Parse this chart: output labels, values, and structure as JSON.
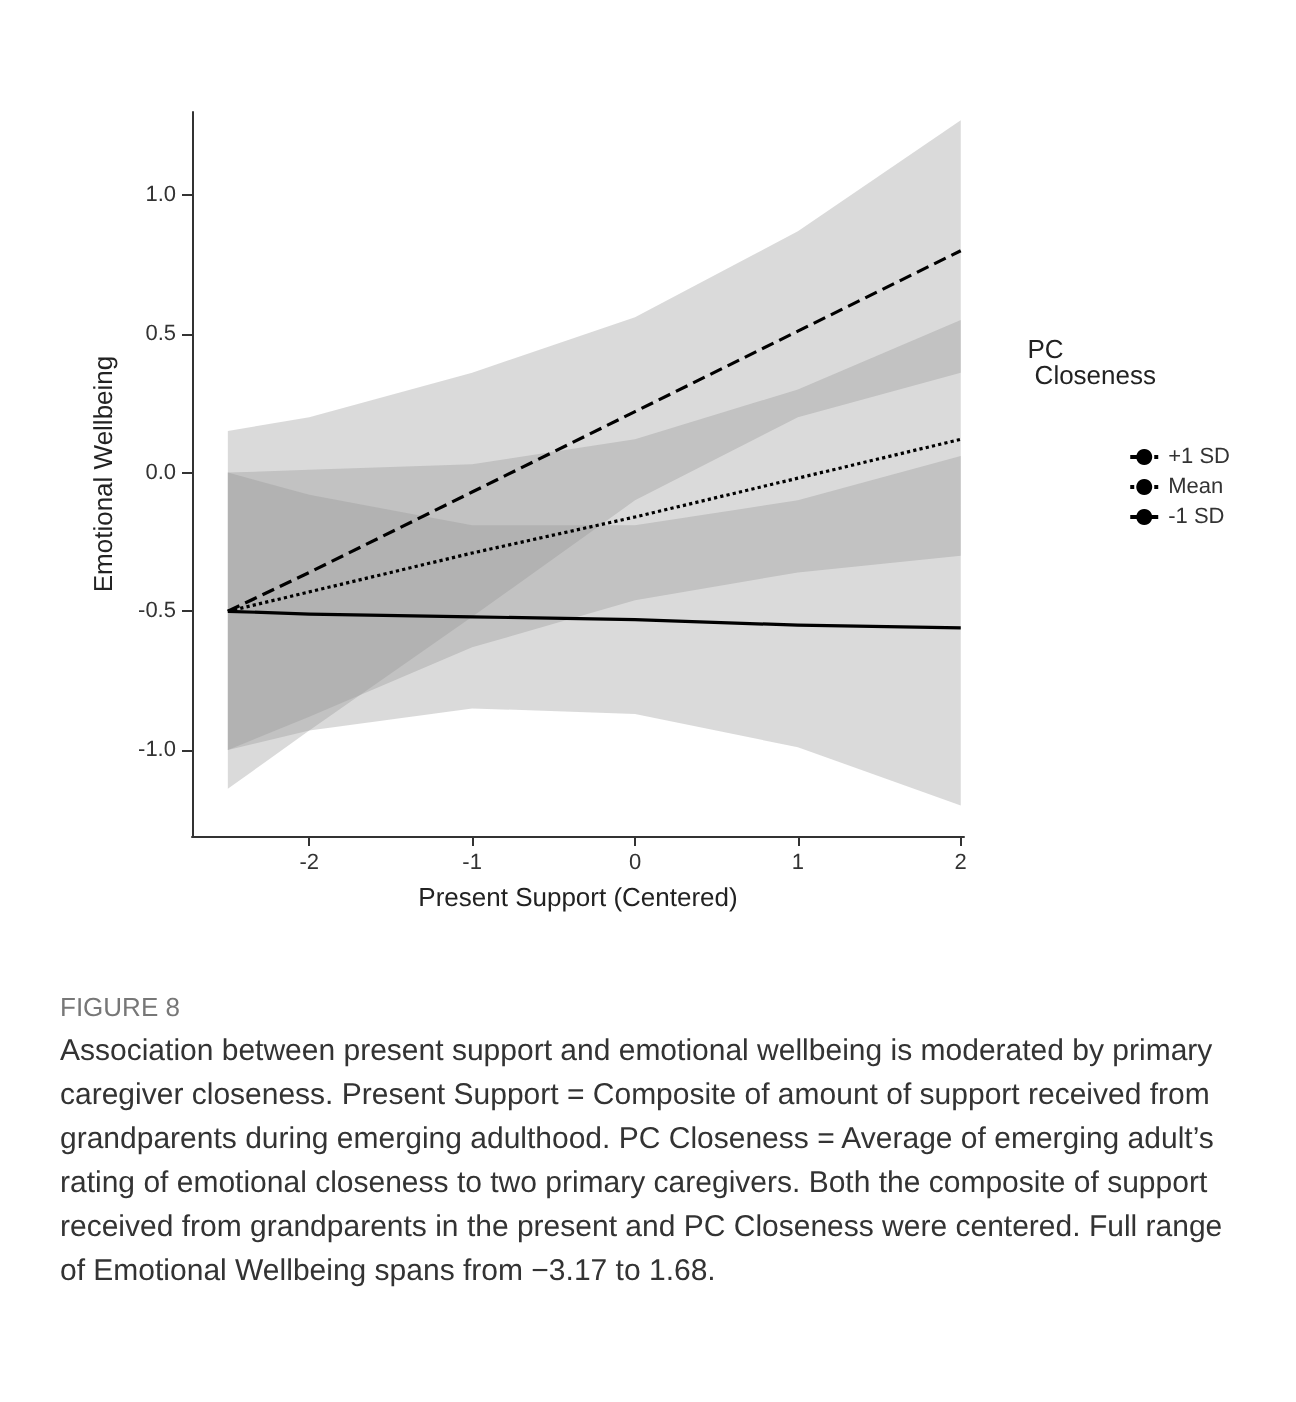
{
  "chart_data": {
    "type": "line",
    "xlabel": "Present Support (Centered)",
    "ylabel": "Emotional Wellbeing",
    "legend_title": "PC\n Closeness",
    "legend": "right",
    "grid": false,
    "marker": "none",
    "x": [
      -2.5,
      -2,
      -1,
      0,
      1,
      2
    ],
    "xlim": [
      -2.72,
      2.02
    ],
    "xticks": [
      -2,
      -1,
      0,
      1,
      2
    ],
    "ylim": [
      -1.31,
      1.3
    ],
    "yticks": [
      {
        "value": -1,
        "label": "-1.0"
      },
      {
        "value": -0.5,
        "label": "-0.5"
      },
      {
        "value": 0,
        "label": "0.0"
      },
      {
        "value": 0.5,
        "label": "0.5"
      },
      {
        "value": 1,
        "label": "1.0"
      }
    ],
    "series": [
      {
        "name": "+1 SD",
        "color": "#000000",
        "line_style": "dashed",
        "values": [
          -0.5,
          -0.36,
          -0.07,
          0.22,
          0.51,
          0.8
        ],
        "lower": [
          -1.14,
          -0.93,
          -0.52,
          -0.1,
          0.2,
          0.36
        ],
        "upper": [
          0.15,
          0.2,
          0.36,
          0.56,
          0.87,
          1.27
        ]
      },
      {
        "name": "Mean",
        "color": "#000000",
        "line_style": "dotted",
        "values": [
          -0.5,
          -0.43,
          -0.29,
          -0.16,
          -0.02,
          0.12
        ],
        "lower": [
          -1.0,
          -0.88,
          -0.63,
          -0.46,
          -0.36,
          -0.3
        ],
        "upper": [
          0.0,
          0.01,
          0.03,
          0.12,
          0.3,
          0.55
        ]
      },
      {
        "name": "-1 SD",
        "color": "#000000",
        "line_style": "solid",
        "values": [
          -0.5,
          -0.51,
          -0.52,
          -0.53,
          -0.55,
          -0.56
        ],
        "lower": [
          -1.0,
          -0.93,
          -0.85,
          -0.87,
          -0.99,
          -1.2
        ],
        "upper": [
          0.0,
          -0.08,
          -0.19,
          -0.19,
          -0.1,
          0.06
        ]
      }
    ],
    "annotations": [
      "FIGURE 8",
      "Association between present support and emotional wellbeing is moderated by primary caregiver closeness. Present Support = Composite of amount of support received from grandparents during emerging adulthood. PC Closeness = Average of emerging adult’s rating of emotional closeness to two primary caregivers. Both the composite of support received from grandparents in the present and PC Closeness were centered. Full range of Emotional Wellbeing spans from −3.17 to 1.68."
    ]
  }
}
